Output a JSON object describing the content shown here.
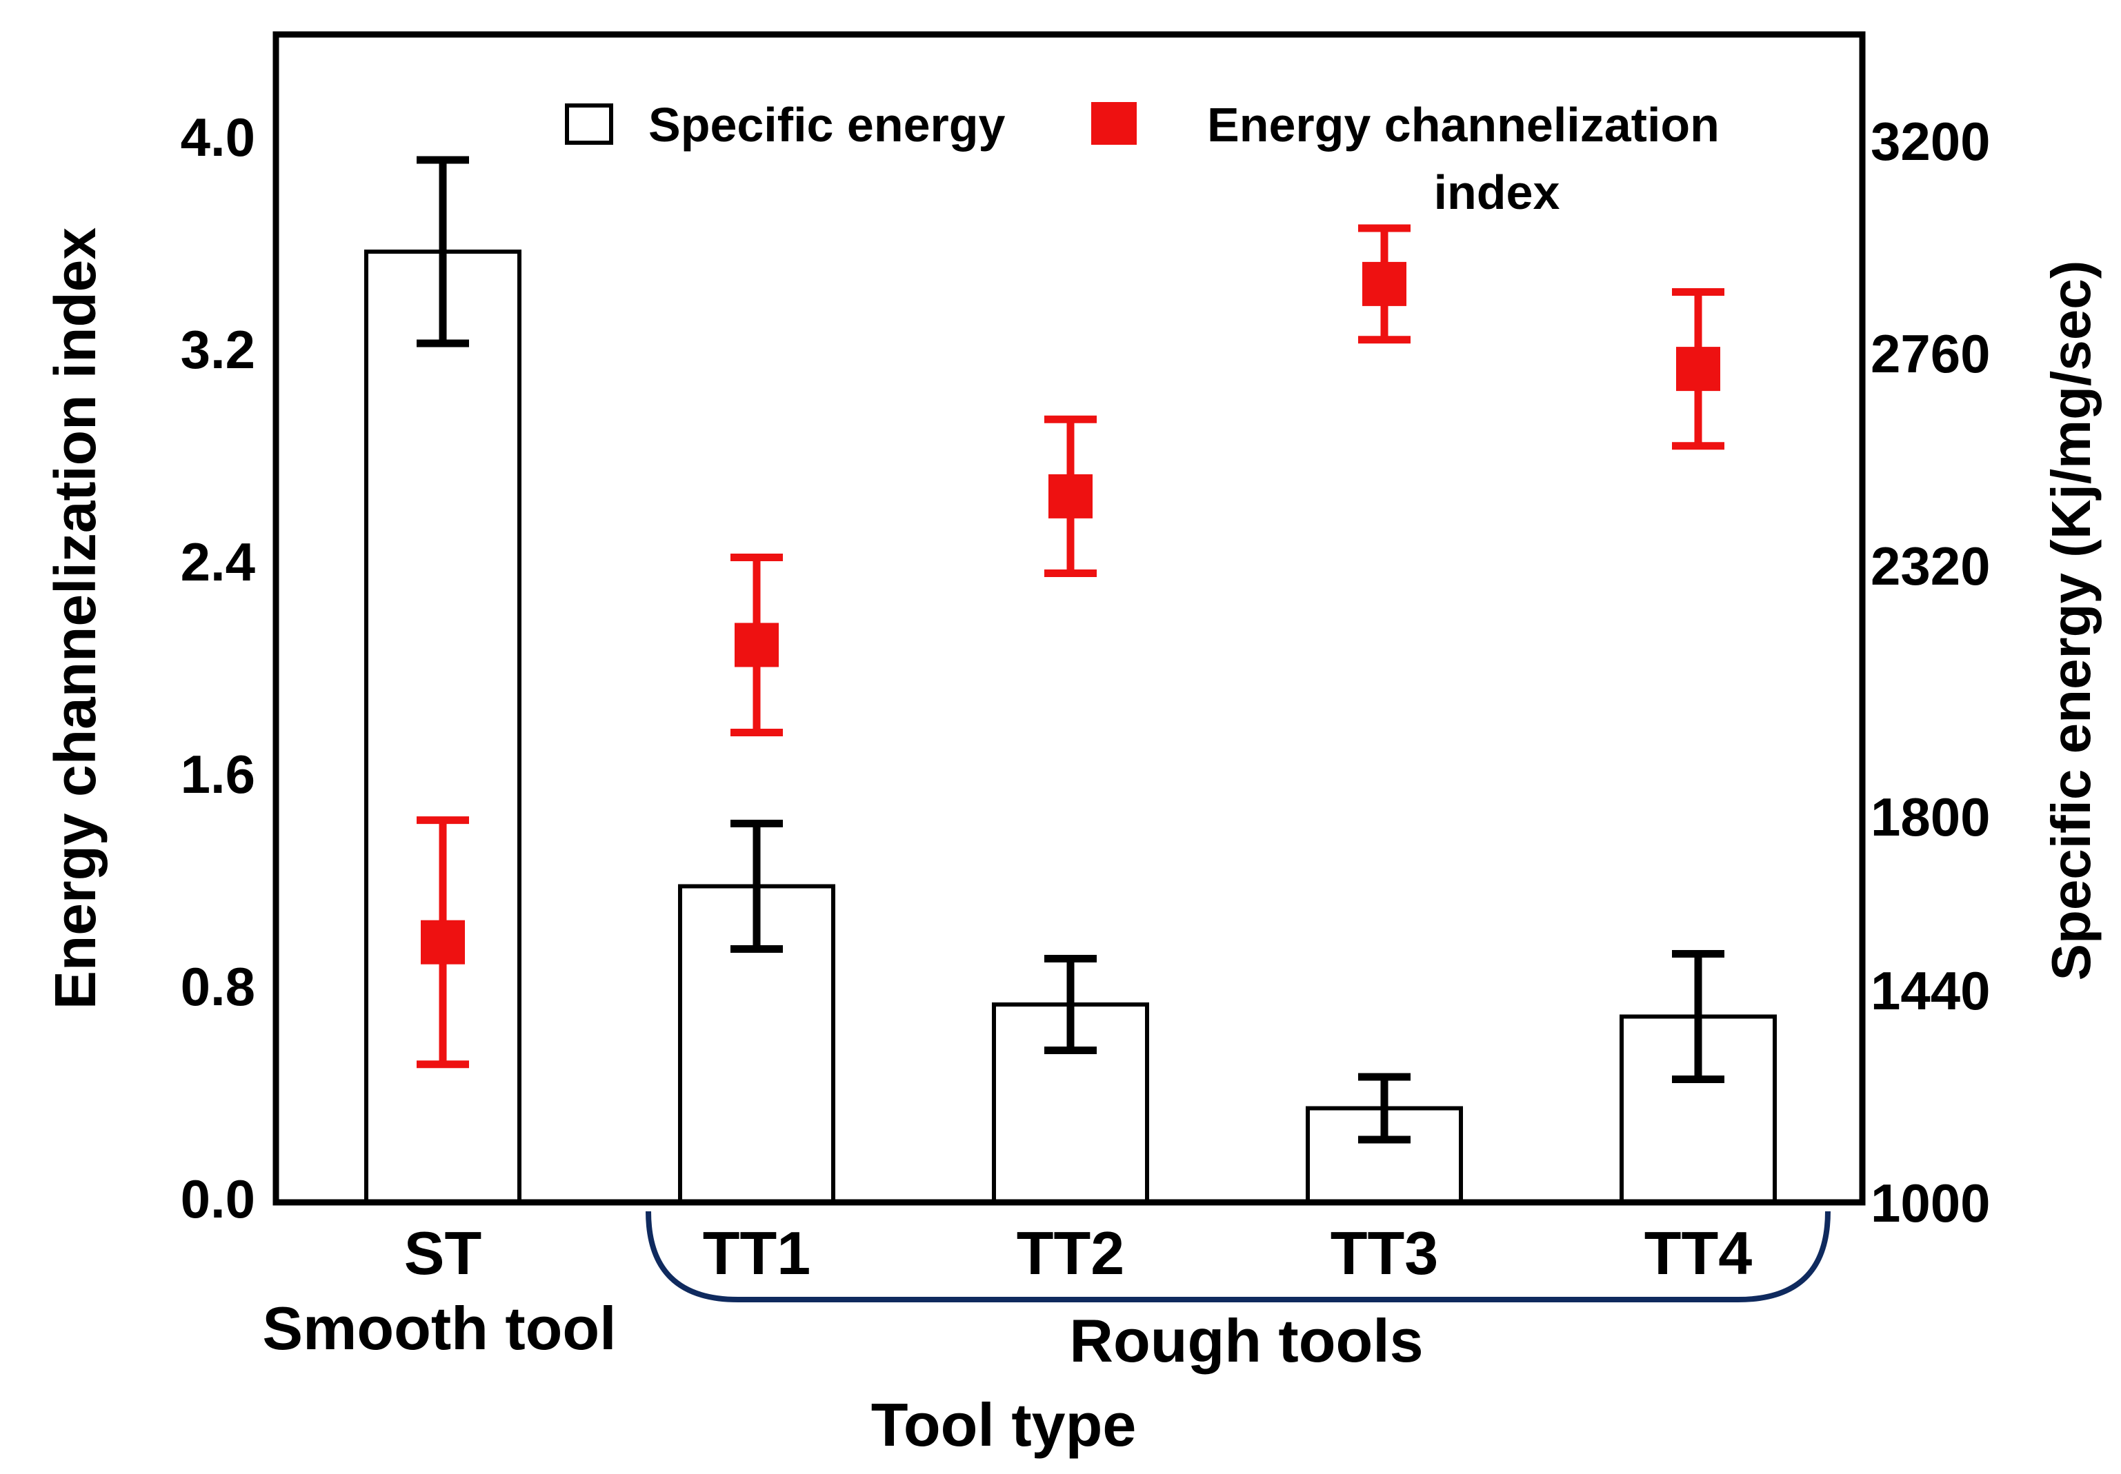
{
  "chart_data": {
    "type": "bar",
    "title": "",
    "xlabel": "Tool type",
    "ylabel_left": "Energy channelization index",
    "ylabel_right": "Specific energy (Kj/mg/sec)",
    "categories": [
      "ST",
      "TT1",
      "TT2",
      "TT3",
      "TT4"
    ],
    "group_labels": [
      {
        "label": "Smooth tool",
        "categories": [
          "ST"
        ]
      },
      {
        "label": "Rough tools",
        "categories": [
          "TT1",
          "TT2",
          "TT3",
          "TT4"
        ]
      }
    ],
    "ylim_left": [
      0.0,
      4.4
    ],
    "ylim_right": [
      1000,
      3420
    ],
    "yticks_left": [
      "0.0",
      "0.8",
      "1.6",
      "2.4",
      "3.2",
      "4.0"
    ],
    "yticks_right": [
      "1000",
      "1440",
      "1800",
      "2320",
      "2760",
      "3200"
    ],
    "series": [
      {
        "name": "Specific energy",
        "kind": "bar",
        "axis": "right",
        "color": "#ffffff",
        "edge_color": "#000000",
        "error_color": "#000000",
        "values": [
          2970,
          1655,
          1410,
          1195,
          1385
        ],
        "errors": [
          190,
          130,
          95,
          65,
          130
        ]
      },
      {
        "name": "Energy channelization index",
        "kind": "scatter",
        "axis": "left",
        "color": "#ee1111",
        "values": [
          0.98,
          2.1,
          2.66,
          3.46,
          3.14
        ],
        "errors": [
          0.46,
          0.33,
          0.29,
          0.21,
          0.29
        ]
      }
    ],
    "legend": {
      "position": "top-right",
      "entries": [
        {
          "label": "Specific energy",
          "marker": "hollow-square"
        },
        {
          "label_lines": [
            "Energy channelization",
            "index"
          ],
          "marker": "filled-red-square"
        }
      ]
    }
  }
}
